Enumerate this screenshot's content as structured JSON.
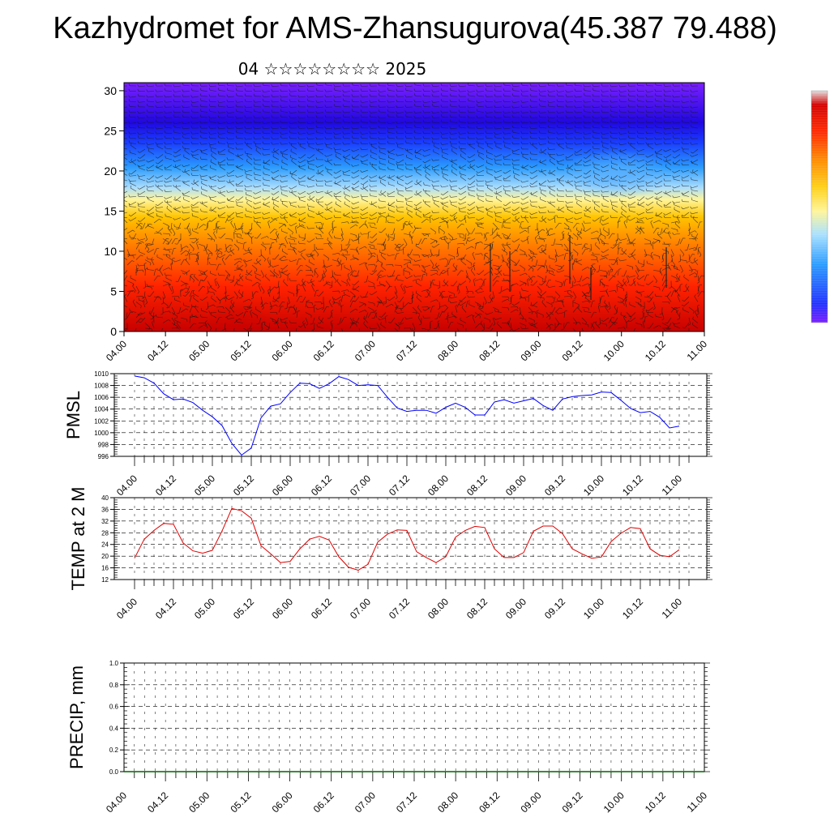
{
  "header": {
    "title": "Kazhydromet for AMS-Zhansugurova(45.387 79.488)",
    "subtitle": "04 ☆☆☆☆☆☆☆☆ 2025"
  },
  "colors": {
    "pmsl_line": "#0000ff",
    "temp_line": "#e00000",
    "precip_baseline": "#006400",
    "colorbar": [
      "#7a1dff",
      "#2030ff",
      "#2a9bff",
      "#a8e0ff",
      "#fff59a",
      "#ffd21a",
      "#ff8c00",
      "#ff2a00",
      "#d40000",
      "#e0e0e0"
    ]
  },
  "chart_data": [
    {
      "type": "heatmap",
      "name": "cross-section",
      "xlabel": "",
      "ylabel": "",
      "x_tick_labels": [
        "04.00",
        "04.12",
        "05.00",
        "05.12",
        "06.00",
        "06.12",
        "07.00",
        "07.12",
        "08.00",
        "08.12",
        "09.00",
        "09.12",
        "10.00",
        "10.12",
        "11.00"
      ],
      "y_ticks": [
        0,
        5,
        10,
        15,
        20,
        25,
        30
      ],
      "ylim": [
        0,
        31
      ],
      "overlay": "wind barbs",
      "colorbar_shown": true
    },
    {
      "type": "line",
      "name": "pmsl",
      "xlabel": "",
      "ylabel": "PMSL",
      "x_tick_labels": [
        "04.00",
        "04.12",
        "05.00",
        "05.12",
        "06.00",
        "06.12",
        "07.00",
        "07.12",
        "08.00",
        "08.12",
        "09.00",
        "09.12",
        "10.00",
        "10.12",
        "11.00"
      ],
      "y_ticks": [
        996,
        998,
        1000,
        1002,
        1004,
        1006,
        1008,
        1010
      ],
      "ylim": [
        996,
        1010
      ],
      "grid": true,
      "series": [
        {
          "x_step_hours": 3,
          "values": [
            1009.6,
            1009.3,
            1008.4,
            1006.6,
            1005.6,
            1005.7,
            1005.1,
            1003.8,
            1002.7,
            1001.2,
            998.2,
            996.2,
            997.4,
            1002.5,
            1004.5,
            1004.9,
            1006.8,
            1008.4,
            1008.3,
            1007.5,
            1008.3,
            1009.5,
            1009.0,
            1008.0,
            1008.1,
            1008.0,
            1006.0,
            1004.2,
            1003.6,
            1003.8,
            1003.8,
            1003.3,
            1004.3,
            1005.0,
            1004.3,
            1003.0,
            1003.0,
            1005.2,
            1005.6,
            1005.0,
            1005.4,
            1005.8,
            1004.6,
            1003.8,
            1005.7,
            1006.1,
            1006.3,
            1006.4,
            1006.9,
            1006.8,
            1005.5,
            1004.1,
            1003.4,
            1003.6,
            1002.6,
            1000.8,
            1001.1
          ]
        }
      ]
    },
    {
      "type": "line",
      "name": "temp2m",
      "xlabel": "",
      "ylabel": "TEMP at 2 M",
      "x_tick_labels": [
        "04.00",
        "04.12",
        "05.00",
        "05.12",
        "06.00",
        "06.12",
        "07.00",
        "07.12",
        "08.00",
        "08.12",
        "09.00",
        "09.12",
        "10.00",
        "10.12",
        "11.00"
      ],
      "y_ticks": [
        12,
        16,
        20,
        24,
        28,
        32,
        36,
        40
      ],
      "ylim": [
        12,
        40
      ],
      "grid": true,
      "series": [
        {
          "x_step_hours": 3,
          "values": [
            19.3,
            25.8,
            28.8,
            31.2,
            30.9,
            24.5,
            21.8,
            21.0,
            22.0,
            28.6,
            36.3,
            35.5,
            33.0,
            23.6,
            20.8,
            17.8,
            18.2,
            22.5,
            25.8,
            26.8,
            25.5,
            19.8,
            16.2,
            15.2,
            17.2,
            24.8,
            27.5,
            29.0,
            28.8,
            21.5,
            19.5,
            17.8,
            19.8,
            26.5,
            28.8,
            30.2,
            29.8,
            22.5,
            19.5,
            19.5,
            21.2,
            28.5,
            30.3,
            30.3,
            27.7,
            22.5,
            20.8,
            19.3,
            19.7,
            25.0,
            27.8,
            29.8,
            29.4,
            22.5,
            20.3,
            19.8,
            22.2
          ]
        }
      ]
    },
    {
      "type": "line",
      "name": "precip",
      "xlabel": "",
      "ylabel": "PRECIP, mm",
      "x_tick_labels": [
        "04.00",
        "04.12",
        "05.00",
        "05.12",
        "06.00",
        "06.12",
        "07.00",
        "07.12",
        "08.00",
        "08.12",
        "09.00",
        "09.12",
        "10.00",
        "10.12",
        "11.00"
      ],
      "y_ticks": [
        "0.0",
        "0.2",
        "0.4",
        "0.6",
        "0.8",
        "1.0"
      ],
      "ylim": [
        0,
        1
      ],
      "grid": true,
      "series": [
        {
          "x_step_hours": 3,
          "values": [
            0,
            0,
            0,
            0,
            0,
            0,
            0,
            0,
            0,
            0,
            0,
            0,
            0,
            0,
            0,
            0,
            0,
            0,
            0,
            0,
            0,
            0,
            0,
            0,
            0,
            0,
            0,
            0,
            0,
            0,
            0,
            0,
            0,
            0,
            0,
            0,
            0,
            0,
            0,
            0,
            0,
            0,
            0,
            0,
            0,
            0,
            0,
            0,
            0,
            0,
            0,
            0,
            0,
            0,
            0,
            0,
            0
          ]
        }
      ]
    }
  ]
}
